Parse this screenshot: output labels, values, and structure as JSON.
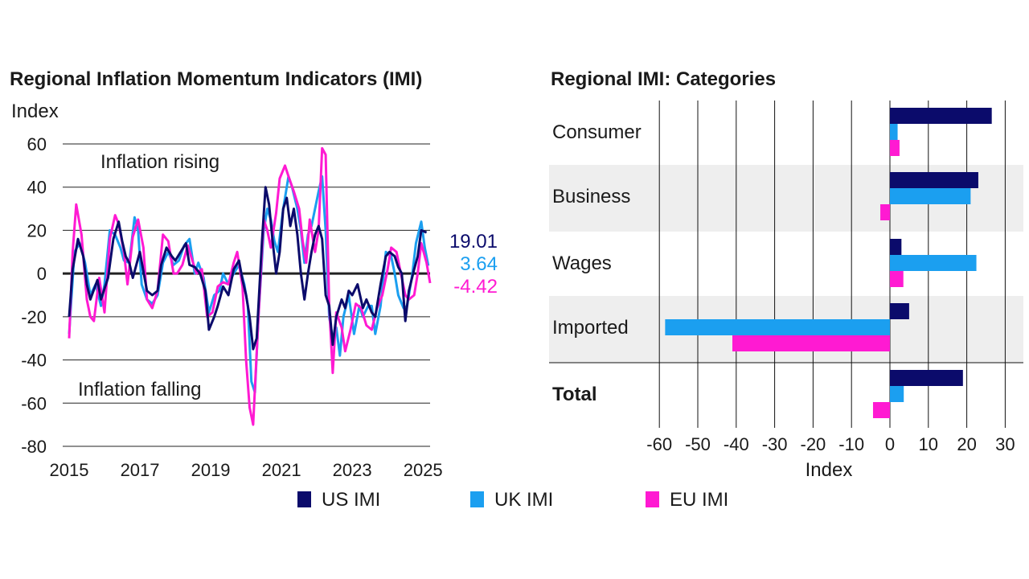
{
  "colors": {
    "us": "#0b0b6b",
    "uk": "#1b9ff0",
    "eu": "#ff1ad2",
    "band": "#eeeeee",
    "grid": "#111111"
  },
  "legend": [
    {
      "name": "US IMI",
      "color": "#0b0b6b"
    },
    {
      "name": "UK IMI",
      "color": "#1b9ff0"
    },
    {
      "name": "EU IMI",
      "color": "#ff1ad2"
    }
  ],
  "chart_data": [
    {
      "type": "line",
      "title": "Regional Inflation Momentum Indicators (IMI)",
      "ylabel": "Index",
      "xlabel": "",
      "xlim": [
        2015,
        2025.2
      ],
      "ylim": [
        -80,
        60
      ],
      "yticks": [
        60,
        40,
        20,
        0,
        -20,
        -40,
        -60,
        -80
      ],
      "xticks": [
        2015,
        2017,
        2019,
        2021,
        2023,
        2025
      ],
      "annotations": {
        "rising": "Inflation rising",
        "falling": "Inflation falling"
      },
      "end_labels": [
        {
          "series": "US IMI",
          "text": "19.01",
          "value": 19.01
        },
        {
          "series": "UK IMI",
          "text": "3.64",
          "value": 3.64
        },
        {
          "series": "EU IMI",
          "text": "-4.42",
          "value": -4.42
        }
      ],
      "series": [
        {
          "name": "US IMI",
          "color": "#0b0b6b",
          "points": [
            [
              2015.0,
              -20
            ],
            [
              2015.1,
              2
            ],
            [
              2015.25,
              16
            ],
            [
              2015.4,
              8
            ],
            [
              2015.5,
              -5
            ],
            [
              2015.6,
              -12
            ],
            [
              2015.8,
              -3
            ],
            [
              2015.9,
              -12
            ],
            [
              2016.1,
              -2
            ],
            [
              2016.25,
              16
            ],
            [
              2016.4,
              24
            ],
            [
              2016.5,
              15
            ],
            [
              2016.6,
              8
            ],
            [
              2016.7,
              5
            ],
            [
              2016.8,
              -2
            ],
            [
              2016.9,
              4
            ],
            [
              2017.0,
              10
            ],
            [
              2017.2,
              -8
            ],
            [
              2017.35,
              -10
            ],
            [
              2017.5,
              -8
            ],
            [
              2017.6,
              4
            ],
            [
              2017.75,
              12
            ],
            [
              2017.9,
              8
            ],
            [
              2018.0,
              6
            ],
            [
              2018.15,
              10
            ],
            [
              2018.3,
              14
            ],
            [
              2018.4,
              4
            ],
            [
              2018.55,
              3
            ],
            [
              2018.7,
              0
            ],
            [
              2018.85,
              -8
            ],
            [
              2018.95,
              -26
            ],
            [
              2019.1,
              -20
            ],
            [
              2019.2,
              -15
            ],
            [
              2019.35,
              -6
            ],
            [
              2019.5,
              -10
            ],
            [
              2019.65,
              2
            ],
            [
              2019.8,
              6
            ],
            [
              2019.9,
              -3
            ],
            [
              2020.0,
              -10
            ],
            [
              2020.1,
              -20
            ],
            [
              2020.2,
              -35
            ],
            [
              2020.3,
              -30
            ],
            [
              2020.45,
              15
            ],
            [
              2020.55,
              40
            ],
            [
              2020.65,
              32
            ],
            [
              2020.75,
              15
            ],
            [
              2020.85,
              0
            ],
            [
              2020.95,
              10
            ],
            [
              2021.05,
              30
            ],
            [
              2021.15,
              35
            ],
            [
              2021.25,
              22
            ],
            [
              2021.35,
              30
            ],
            [
              2021.45,
              18
            ],
            [
              2021.55,
              0
            ],
            [
              2021.65,
              -12
            ],
            [
              2021.75,
              0
            ],
            [
              2021.85,
              10
            ],
            [
              2021.95,
              18
            ],
            [
              2022.05,
              22
            ],
            [
              2022.15,
              16
            ],
            [
              2022.25,
              -10
            ],
            [
              2022.35,
              -15
            ],
            [
              2022.45,
              -33
            ],
            [
              2022.55,
              -20
            ],
            [
              2022.7,
              -12
            ],
            [
              2022.8,
              -16
            ],
            [
              2022.9,
              -8
            ],
            [
              2023.0,
              -10
            ],
            [
              2023.15,
              -5
            ],
            [
              2023.3,
              -16
            ],
            [
              2023.4,
              -12
            ],
            [
              2023.55,
              -18
            ],
            [
              2023.65,
              -20
            ],
            [
              2023.8,
              -5
            ],
            [
              2023.95,
              8
            ],
            [
              2024.05,
              10
            ],
            [
              2024.2,
              8
            ],
            [
              2024.3,
              3
            ],
            [
              2024.4,
              0
            ],
            [
              2024.5,
              -22
            ],
            [
              2024.6,
              -8
            ],
            [
              2024.75,
              2
            ],
            [
              2024.85,
              8
            ],
            [
              2024.95,
              20
            ],
            [
              2025.1,
              19.01
            ]
          ]
        },
        {
          "name": "UK IMI",
          "color": "#1b9ff0",
          "points": [
            [
              2015.0,
              -28
            ],
            [
              2015.15,
              10
            ],
            [
              2015.3,
              14
            ],
            [
              2015.45,
              5
            ],
            [
              2015.6,
              -10
            ],
            [
              2015.75,
              -5
            ],
            [
              2015.9,
              -15
            ],
            [
              2016.0,
              -5
            ],
            [
              2016.15,
              20
            ],
            [
              2016.3,
              18
            ],
            [
              2016.45,
              12
            ],
            [
              2016.55,
              6
            ],
            [
              2016.7,
              5
            ],
            [
              2016.85,
              26
            ],
            [
              2016.95,
              20
            ],
            [
              2017.05,
              -5
            ],
            [
              2017.2,
              -12
            ],
            [
              2017.35,
              -14
            ],
            [
              2017.5,
              -10
            ],
            [
              2017.65,
              5
            ],
            [
              2017.8,
              10
            ],
            [
              2017.95,
              4
            ],
            [
              2018.1,
              6
            ],
            [
              2018.25,
              13
            ],
            [
              2018.4,
              16
            ],
            [
              2018.55,
              0
            ],
            [
              2018.65,
              5
            ],
            [
              2018.8,
              -2
            ],
            [
              2018.95,
              -18
            ],
            [
              2019.1,
              -10
            ],
            [
              2019.25,
              -8
            ],
            [
              2019.35,
              0
            ],
            [
              2019.5,
              -5
            ],
            [
              2019.65,
              0
            ],
            [
              2019.8,
              4
            ],
            [
              2019.95,
              -5
            ],
            [
              2020.05,
              -15
            ],
            [
              2020.15,
              -50
            ],
            [
              2020.25,
              -55
            ],
            [
              2020.35,
              -20
            ],
            [
              2020.5,
              20
            ],
            [
              2020.6,
              30
            ],
            [
              2020.7,
              25
            ],
            [
              2020.8,
              15
            ],
            [
              2020.9,
              10
            ],
            [
              2021.05,
              30
            ],
            [
              2021.2,
              45
            ],
            [
              2021.3,
              40
            ],
            [
              2021.45,
              30
            ],
            [
              2021.55,
              20
            ],
            [
              2021.65,
              5
            ],
            [
              2021.75,
              18
            ],
            [
              2021.85,
              22
            ],
            [
              2021.95,
              30
            ],
            [
              2022.05,
              38
            ],
            [
              2022.15,
              45
            ],
            [
              2022.25,
              20
            ],
            [
              2022.35,
              -20
            ],
            [
              2022.45,
              -30
            ],
            [
              2022.55,
              -25
            ],
            [
              2022.65,
              -38
            ],
            [
              2022.75,
              -20
            ],
            [
              2022.9,
              -10
            ],
            [
              2023.05,
              -28
            ],
            [
              2023.2,
              -15
            ],
            [
              2023.3,
              -20
            ],
            [
              2023.45,
              -15
            ],
            [
              2023.55,
              -15
            ],
            [
              2023.65,
              -28
            ],
            [
              2023.8,
              -15
            ],
            [
              2023.95,
              10
            ],
            [
              2024.1,
              8
            ],
            [
              2024.2,
              0
            ],
            [
              2024.3,
              -10
            ],
            [
              2024.45,
              -16
            ],
            [
              2024.55,
              -15
            ],
            [
              2024.7,
              0
            ],
            [
              2024.8,
              14
            ],
            [
              2024.95,
              24
            ],
            [
              2025.05,
              12
            ],
            [
              2025.15,
              3.64
            ]
          ]
        },
        {
          "name": "EU IMI",
          "color": "#ff1ad2",
          "points": [
            [
              2015.0,
              -30
            ],
            [
              2015.1,
              10
            ],
            [
              2015.2,
              32
            ],
            [
              2015.35,
              18
            ],
            [
              2015.5,
              -12
            ],
            [
              2015.6,
              -20
            ],
            [
              2015.7,
              -22
            ],
            [
              2015.85,
              -2
            ],
            [
              2016.0,
              -18
            ],
            [
              2016.15,
              16
            ],
            [
              2016.3,
              27
            ],
            [
              2016.4,
              23
            ],
            [
              2016.55,
              10
            ],
            [
              2016.65,
              -5
            ],
            [
              2016.8,
              17
            ],
            [
              2016.95,
              25
            ],
            [
              2017.1,
              12
            ],
            [
              2017.2,
              -12
            ],
            [
              2017.35,
              -16
            ],
            [
              2017.5,
              -8
            ],
            [
              2017.65,
              18
            ],
            [
              2017.8,
              15
            ],
            [
              2017.95,
              0
            ],
            [
              2018.05,
              0
            ],
            [
              2018.2,
              4
            ],
            [
              2018.35,
              13
            ],
            [
              2018.5,
              5
            ],
            [
              2018.6,
              0
            ],
            [
              2018.75,
              2
            ],
            [
              2018.9,
              -20
            ],
            [
              2019.05,
              -18
            ],
            [
              2019.2,
              -6
            ],
            [
              2019.35,
              -4
            ],
            [
              2019.5,
              -5
            ],
            [
              2019.65,
              5
            ],
            [
              2019.75,
              10
            ],
            [
              2019.9,
              -6
            ],
            [
              2020.0,
              -40
            ],
            [
              2020.1,
              -62
            ],
            [
              2020.2,
              -70
            ],
            [
              2020.35,
              -20
            ],
            [
              2020.5,
              25
            ],
            [
              2020.6,
              20
            ],
            [
              2020.7,
              12
            ],
            [
              2020.85,
              28
            ],
            [
              2020.95,
              44
            ],
            [
              2021.1,
              50
            ],
            [
              2021.2,
              45
            ],
            [
              2021.35,
              38
            ],
            [
              2021.5,
              30
            ],
            [
              2021.6,
              15
            ],
            [
              2021.7,
              5
            ],
            [
              2021.8,
              25
            ],
            [
              2021.95,
              10
            ],
            [
              2022.05,
              20
            ],
            [
              2022.15,
              58
            ],
            [
              2022.25,
              55
            ],
            [
              2022.35,
              -15
            ],
            [
              2022.45,
              -46
            ],
            [
              2022.55,
              -18
            ],
            [
              2022.7,
              -25
            ],
            [
              2022.8,
              -36
            ],
            [
              2022.95,
              -26
            ],
            [
              2023.1,
              -14
            ],
            [
              2023.25,
              -16
            ],
            [
              2023.4,
              -24
            ],
            [
              2023.55,
              -26
            ],
            [
              2023.7,
              -16
            ],
            [
              2023.85,
              -10
            ],
            [
              2024.0,
              2
            ],
            [
              2024.1,
              12
            ],
            [
              2024.25,
              10
            ],
            [
              2024.35,
              2
            ],
            [
              2024.5,
              -10
            ],
            [
              2024.6,
              -12
            ],
            [
              2024.75,
              -10
            ],
            [
              2024.85,
              0
            ],
            [
              2024.95,
              14
            ],
            [
              2025.1,
              5
            ],
            [
              2025.2,
              -4.42
            ]
          ]
        }
      ]
    },
    {
      "type": "bar",
      "orientation": "horizontal",
      "title": "Regional IMI: Categories",
      "xlabel": "Index",
      "ylabel": "",
      "xlim": [
        -60,
        35
      ],
      "xticks": [
        -60,
        -50,
        -40,
        -30,
        -20,
        -10,
        0,
        10,
        20,
        30
      ],
      "categories": [
        "Consumer",
        "Business",
        "Wages",
        "Imported",
        "Total"
      ],
      "category_bold": [
        false,
        false,
        false,
        false,
        true
      ],
      "shaded_bands": [
        "Business",
        "Imported"
      ],
      "series": [
        {
          "name": "US IMI",
          "color": "#0b0b6b",
          "values": [
            26.5,
            23,
            3,
            5,
            19
          ]
        },
        {
          "name": "UK IMI",
          "color": "#1b9ff0",
          "values": [
            2,
            21,
            22.5,
            -58.5,
            3.6
          ]
        },
        {
          "name": "EU IMI",
          "color": "#ff1ad2",
          "values": [
            2.5,
            -2.5,
            3.5,
            -41,
            -4.4
          ]
        }
      ]
    }
  ]
}
